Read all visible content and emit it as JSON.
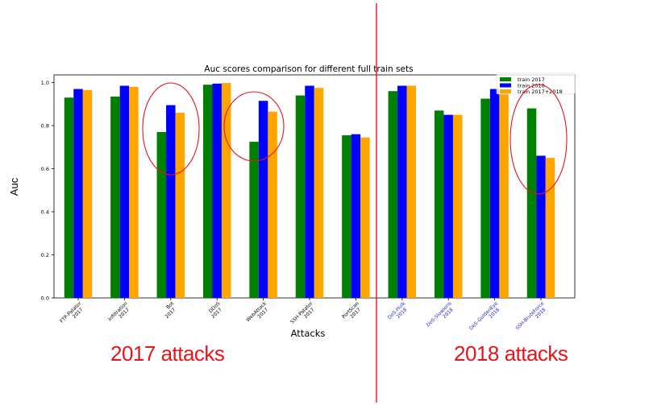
{
  "chart_data": {
    "type": "bar",
    "title": "Auc scores comparison for different full train sets",
    "xlabel": "Attacks",
    "ylabel": "Auc",
    "ylim": [
      0,
      1.0
    ],
    "yticks": [
      "0.0",
      "0.2",
      "0.4",
      "0.6",
      "0.8",
      "1.0"
    ],
    "legend_position": "top-right",
    "categories": [
      [
        "FTP-Patator",
        "2017"
      ],
      [
        "Infiltration",
        "2017"
      ],
      [
        "Bot",
        "2017"
      ],
      [
        "DDoS",
        "2017"
      ],
      [
        "WebAttack",
        "2017"
      ],
      [
        "SSH-Patator",
        "2017"
      ],
      [
        "PortScan",
        "2017"
      ],
      [
        "DoS-Hulk",
        "2018"
      ],
      [
        "DoS-Slowloris",
        "2018"
      ],
      [
        "DoS-GoldenEye",
        "2018"
      ],
      [
        "SSH-BruteForce",
        "2018"
      ]
    ],
    "category_label_colors": [
      "#000000",
      "#000000",
      "#000000",
      "#000000",
      "#000000",
      "#000000",
      "#000000",
      "#1f1fd6",
      "#1f1fd6",
      "#1f1fd6",
      "#1f1fd6"
    ],
    "series": [
      {
        "name": "train 2017",
        "color": "#008000",
        "values": [
          0.93,
          0.935,
          0.77,
          0.99,
          0.725,
          0.94,
          0.755,
          0.96,
          0.87,
          0.925,
          0.88
        ]
      },
      {
        "name": "train 2018",
        "color": "#0000ff",
        "values": [
          0.97,
          0.985,
          0.895,
          0.995,
          0.915,
          0.985,
          0.76,
          0.985,
          0.85,
          0.97,
          0.66
        ]
      },
      {
        "name": "train 2017+2018",
        "color": "#ffa500",
        "values": [
          0.965,
          0.98,
          0.86,
          0.998,
          0.865,
          0.975,
          0.745,
          0.985,
          0.85,
          0.96,
          0.65
        ]
      }
    ],
    "annotations": {
      "left_label": "2017 attacks",
      "right_label": "2018 attacks",
      "annotation_color": "#e8141a",
      "circled_categories": [
        "Bot",
        "WebAttack",
        "SSH-BruteForce"
      ]
    }
  }
}
